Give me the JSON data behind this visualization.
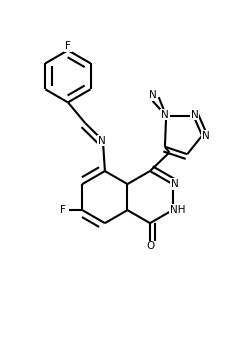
{
  "bg_color": "#ffffff",
  "lw": 1.5,
  "fs": 7.5,
  "xlim": [
    0,
    10
  ],
  "ylim": [
    0,
    14.4
  ],
  "figsize": [
    2.48,
    3.58
  ],
  "dpi": 100
}
